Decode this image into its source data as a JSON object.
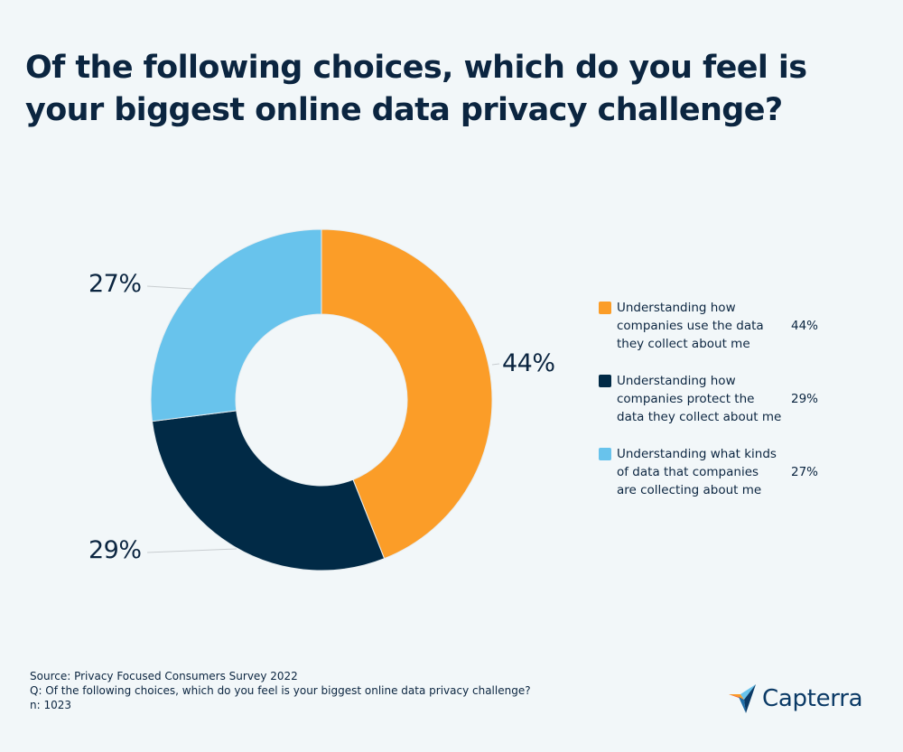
{
  "title": {
    "line1": "Of the following choices, which do you feel is",
    "line2": "your biggest online data privacy challenge?"
  },
  "colors": {
    "background": "#f2f7f9",
    "orange": "#fb9d28",
    "navy": "#012a46",
    "light_blue": "#68c3ec",
    "text": "#0b2540",
    "leader_line": "#c8cdd0"
  },
  "chart_data": {
    "type": "pie",
    "variant": "donut",
    "title": "Of the following choices, which do you feel is your biggest online data privacy challenge?",
    "categories": [
      "Understanding how companies use the data they collect about me",
      "Understanding how companies protect the data they collect about me",
      "Understanding what kinds of data that companies are collecting about me"
    ],
    "values": [
      44,
      29,
      27
    ],
    "unit": "%",
    "colors": [
      "#fb9d28",
      "#012a46",
      "#68c3ec"
    ],
    "data_labels": [
      "44%",
      "29%",
      "27%"
    ],
    "legend_position": "right",
    "start_angle": "12 o'clock, clockwise"
  },
  "labels": {
    "slice_44": "44%",
    "slice_29": "29%",
    "slice_27": "27%"
  },
  "legend": {
    "items": [
      {
        "lines": [
          "Understanding how",
          "companies use the data",
          "they collect about me"
        ],
        "value": "44%",
        "color": "#fb9d28"
      },
      {
        "lines": [
          "Understanding how",
          "companies protect the",
          "data they collect about me"
        ],
        "value": "29%",
        "color": "#012a46"
      },
      {
        "lines": [
          "Understanding what kinds",
          "of data that companies",
          "are collecting about me"
        ],
        "value": "27%",
        "color": "#68c3ec"
      }
    ]
  },
  "footer": {
    "source": "Source: Privacy Focused Consumers Survey 2022",
    "question": "Q: Of the following choices, which do you feel is your biggest online data privacy challenge?",
    "n": "n: 1023"
  },
  "logo": {
    "text": "Capterra"
  }
}
